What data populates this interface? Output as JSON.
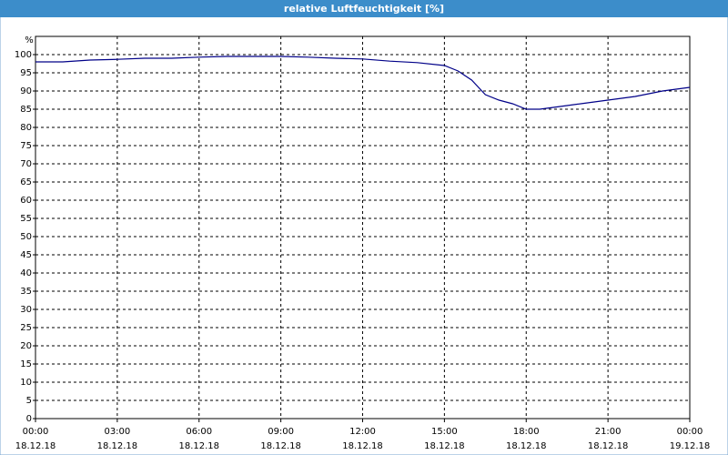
{
  "chart_data": {
    "type": "line",
    "title": "relative Luftfeuchtigkeit [%]",
    "y_label": "%",
    "x": [
      0,
      1,
      2,
      3,
      4,
      5,
      6,
      7,
      8,
      9,
      10,
      11,
      12,
      13,
      14,
      15,
      15.5,
      16,
      16.5,
      17,
      17.5,
      18,
      18.5,
      19,
      19.5,
      20,
      20.5,
      21,
      22,
      23,
      24
    ],
    "series": [
      {
        "color": "#000088",
        "values": [
          98,
          98,
          98.5,
          98.7,
          99,
          99,
          99.3,
          99.5,
          99.5,
          99.5,
          99.3,
          99,
          98.8,
          98.2,
          97.8,
          97,
          95.5,
          93,
          89,
          87.5,
          86.5,
          85,
          85,
          85.5,
          86,
          86.5,
          87,
          87.5,
          88.5,
          90,
          91
        ]
      }
    ],
    "xlim": [
      0,
      24
    ],
    "xticks": [
      {
        "value": 0,
        "label": "00:00\n18.12.18"
      },
      {
        "value": 3,
        "label": "03:00\n18.12.18"
      },
      {
        "value": 6,
        "label": "06:00\n18.12.18"
      },
      {
        "value": 9,
        "label": "09:00\n18.12.18"
      },
      {
        "value": 12,
        "label": "12:00\n18.12.18"
      },
      {
        "value": 15,
        "label": "15:00\n18.12.18"
      },
      {
        "value": 18,
        "label": "18:00\n18.12.18"
      },
      {
        "value": 21,
        "label": "21:00\n18.12.18"
      },
      {
        "value": 24,
        "label": "00:00\n19.12.18"
      }
    ],
    "ylim": [
      0,
      105
    ],
    "yticks": [
      0,
      5,
      10,
      15,
      20,
      25,
      30,
      35,
      40,
      45,
      50,
      55,
      60,
      65,
      70,
      75,
      80,
      85,
      90,
      95,
      100
    ],
    "grid": true
  }
}
